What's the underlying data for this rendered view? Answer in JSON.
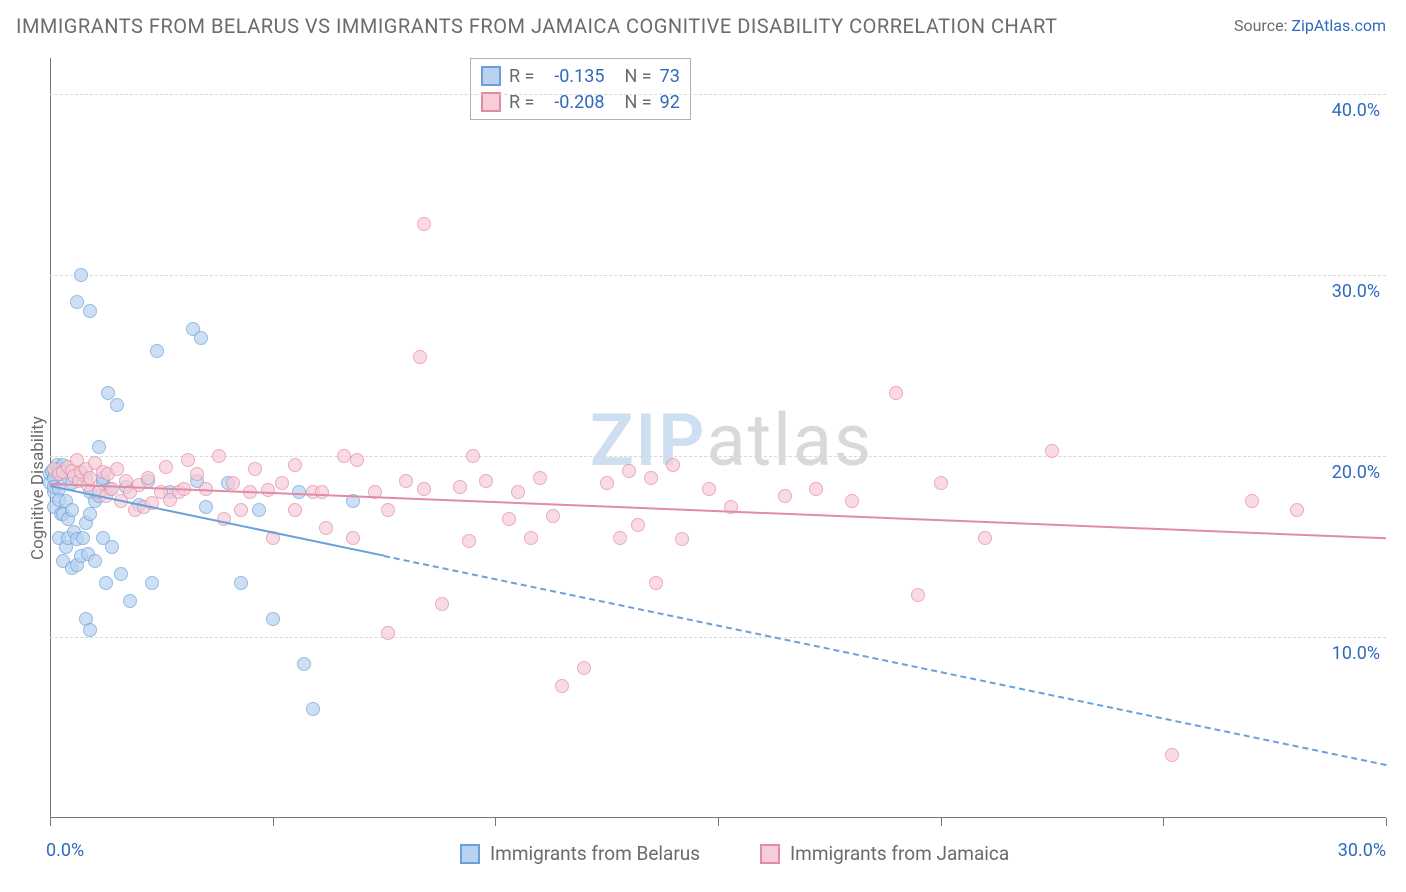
{
  "title": "IMMIGRANTS FROM BELARUS VS IMMIGRANTS FROM JAMAICA COGNITIVE DISABILITY CORRELATION CHART",
  "source_prefix": "Source: ",
  "source_link": "ZipAtlas.com",
  "ylabel": "Cognitive Disability",
  "watermark_a": "ZIP",
  "watermark_b": "atlas",
  "watermark_color_a": "#cddff0",
  "watermark_color_b": "#d9d9d9",
  "chart": {
    "type": "scatter",
    "background_color": "#ffffff",
    "grid_color": "#d8d8d8",
    "axis_color": "#777777",
    "tick_label_color": "#2f6bbd",
    "label_color": "#6b6b6b",
    "title_fontsize": 20,
    "label_fontsize": 17,
    "tick_fontsize": 18,
    "marker_radius": 7,
    "marker_border_width": 1.5,
    "trend_width": 2.2,
    "xlim": [
      0,
      30
    ],
    "ylim": [
      0,
      42
    ],
    "x_ticks": [
      0,
      5,
      10,
      15,
      20,
      25,
      30
    ],
    "x_tick_labels": {
      "0": "0.0%",
      "30": "30.0%"
    },
    "y_ticks": [
      10,
      20,
      30,
      40
    ],
    "y_tick_labels": {
      "10": "10.0%",
      "20": "20.0%",
      "30": "30.0%",
      "40": "40.0%"
    },
    "series": [
      {
        "name": "Immigrants from Belarus",
        "fill": "#b9d2ee",
        "stroke": "#6aa0dc",
        "fill_opacity": 0.7,
        "R": "-0.135",
        "N": "73",
        "trend": {
          "x1": 0,
          "y1": 18.4,
          "solid_until_x": 7.5,
          "x2": 30,
          "y2": 3.0,
          "dash": "5,5"
        },
        "points": [
          [
            0.0,
            19.0
          ],
          [
            0.0,
            18.5
          ],
          [
            0.05,
            19.2
          ],
          [
            0.1,
            18.0
          ],
          [
            0.1,
            18.8
          ],
          [
            0.1,
            18.3
          ],
          [
            0.1,
            17.2
          ],
          [
            0.15,
            19.5
          ],
          [
            0.2,
            18.2
          ],
          [
            0.2,
            19.3
          ],
          [
            0.2,
            15.5
          ],
          [
            0.2,
            17.6
          ],
          [
            0.25,
            16.8
          ],
          [
            0.25,
            19.0
          ],
          [
            0.3,
            16.8
          ],
          [
            0.3,
            19.5
          ],
          [
            0.3,
            14.2
          ],
          [
            0.35,
            17.5
          ],
          [
            0.35,
            15.0
          ],
          [
            0.4,
            15.5
          ],
          [
            0.4,
            18.8
          ],
          [
            0.4,
            16.5
          ],
          [
            0.5,
            13.8
          ],
          [
            0.5,
            17.0
          ],
          [
            0.5,
            18.5
          ],
          [
            0.55,
            15.8
          ],
          [
            0.6,
            15.4
          ],
          [
            0.6,
            14.0
          ],
          [
            0.6,
            28.5
          ],
          [
            0.7,
            30.0
          ],
          [
            0.7,
            14.5
          ],
          [
            0.7,
            19.0
          ],
          [
            0.75,
            15.5
          ],
          [
            0.8,
            16.3
          ],
          [
            0.8,
            18.8
          ],
          [
            0.8,
            11.0
          ],
          [
            0.85,
            14.6
          ],
          [
            0.9,
            18.0
          ],
          [
            0.9,
            16.8
          ],
          [
            0.9,
            28.0
          ],
          [
            0.9,
            10.4
          ],
          [
            1.0,
            14.2
          ],
          [
            1.0,
            17.5
          ],
          [
            1.1,
            20.5
          ],
          [
            1.1,
            17.8
          ],
          [
            1.2,
            18.5
          ],
          [
            1.2,
            15.5
          ],
          [
            1.2,
            18.8
          ],
          [
            1.25,
            13.0
          ],
          [
            1.3,
            23.5
          ],
          [
            1.35,
            18.2
          ],
          [
            1.4,
            15.0
          ],
          [
            1.5,
            22.8
          ],
          [
            1.6,
            13.5
          ],
          [
            1.7,
            18.3
          ],
          [
            1.8,
            12.0
          ],
          [
            2.0,
            17.3
          ],
          [
            2.2,
            18.6
          ],
          [
            2.3,
            13.0
          ],
          [
            2.4,
            25.8
          ],
          [
            2.7,
            18.0
          ],
          [
            3.2,
            27.0
          ],
          [
            3.3,
            18.6
          ],
          [
            3.4,
            26.5
          ],
          [
            3.5,
            17.2
          ],
          [
            4.0,
            18.5
          ],
          [
            4.3,
            13.0
          ],
          [
            4.7,
            17.0
          ],
          [
            5.0,
            11.0
          ],
          [
            5.6,
            18.0
          ],
          [
            5.7,
            8.5
          ],
          [
            5.9,
            6.0
          ],
          [
            6.8,
            17.5
          ]
        ]
      },
      {
        "name": "Immigrants from Jamaica",
        "fill": "#f6cdd9",
        "stroke": "#e38aa5",
        "fill_opacity": 0.7,
        "R": "-0.208",
        "N": "92",
        "trend": {
          "x1": 0,
          "y1": 18.5,
          "solid_until_x": 30,
          "x2": 30,
          "y2": 15.5,
          "dash": null
        },
        "points": [
          [
            0.1,
            19.3
          ],
          [
            0.2,
            19.0
          ],
          [
            0.3,
            19.1
          ],
          [
            0.4,
            19.4
          ],
          [
            0.5,
            19.2
          ],
          [
            0.55,
            18.9
          ],
          [
            0.6,
            19.8
          ],
          [
            0.65,
            18.6
          ],
          [
            0.7,
            19.1
          ],
          [
            0.8,
            19.3
          ],
          [
            0.85,
            18.4
          ],
          [
            0.9,
            18.8
          ],
          [
            1.0,
            19.6
          ],
          [
            1.1,
            18.0
          ],
          [
            1.2,
            19.1
          ],
          [
            1.25,
            17.8
          ],
          [
            1.3,
            19.0
          ],
          [
            1.4,
            18.2
          ],
          [
            1.5,
            19.3
          ],
          [
            1.6,
            17.5
          ],
          [
            1.7,
            18.6
          ],
          [
            1.8,
            18.0
          ],
          [
            1.9,
            17.0
          ],
          [
            2.0,
            18.4
          ],
          [
            2.1,
            17.2
          ],
          [
            2.2,
            18.8
          ],
          [
            2.3,
            17.4
          ],
          [
            2.5,
            18.0
          ],
          [
            2.6,
            19.4
          ],
          [
            2.7,
            17.6
          ],
          [
            2.9,
            18.0
          ],
          [
            3.0,
            18.2
          ],
          [
            3.1,
            19.8
          ],
          [
            3.3,
            19.0
          ],
          [
            3.5,
            18.2
          ],
          [
            3.8,
            20.0
          ],
          [
            3.9,
            16.5
          ],
          [
            4.1,
            18.5
          ],
          [
            4.3,
            17.0
          ],
          [
            4.5,
            18.0
          ],
          [
            4.6,
            19.3
          ],
          [
            4.9,
            18.1
          ],
          [
            5.0,
            15.5
          ],
          [
            5.2,
            18.5
          ],
          [
            5.5,
            19.5
          ],
          [
            5.5,
            17.0
          ],
          [
            5.9,
            18.0
          ],
          [
            6.1,
            18.0
          ],
          [
            6.2,
            16.0
          ],
          [
            6.6,
            20.0
          ],
          [
            6.8,
            15.5
          ],
          [
            6.9,
            19.8
          ],
          [
            7.3,
            18.0
          ],
          [
            7.6,
            17.0
          ],
          [
            7.6,
            10.2
          ],
          [
            8.0,
            18.6
          ],
          [
            8.3,
            25.5
          ],
          [
            8.4,
            18.2
          ],
          [
            8.4,
            32.8
          ],
          [
            8.8,
            11.8
          ],
          [
            9.2,
            18.3
          ],
          [
            9.4,
            15.3
          ],
          [
            9.5,
            20.0
          ],
          [
            9.8,
            18.6
          ],
          [
            10.3,
            16.5
          ],
          [
            10.5,
            18.0
          ],
          [
            10.8,
            15.5
          ],
          [
            11.0,
            18.8
          ],
          [
            11.3,
            16.7
          ],
          [
            11.5,
            7.3
          ],
          [
            12.0,
            8.3
          ],
          [
            12.5,
            18.5
          ],
          [
            12.8,
            15.5
          ],
          [
            13.0,
            19.2
          ],
          [
            13.2,
            16.2
          ],
          [
            13.5,
            18.8
          ],
          [
            13.6,
            13.0
          ],
          [
            14.0,
            19.5
          ],
          [
            14.2,
            15.4
          ],
          [
            14.8,
            18.2
          ],
          [
            15.3,
            17.2
          ],
          [
            16.5,
            17.8
          ],
          [
            17.2,
            18.2
          ],
          [
            18.0,
            17.5
          ],
          [
            19.0,
            23.5
          ],
          [
            19.5,
            12.3
          ],
          [
            20.0,
            18.5
          ],
          [
            21.0,
            15.5
          ],
          [
            22.5,
            20.3
          ],
          [
            25.2,
            3.5
          ],
          [
            27.0,
            17.5
          ],
          [
            28.0,
            17.0
          ]
        ]
      }
    ]
  },
  "legend_top": {
    "R_label": "R =",
    "N_label": "N ="
  },
  "bottom_legend": [
    {
      "label": "Immigrants from Belarus"
    },
    {
      "label": "Immigrants from Jamaica"
    }
  ]
}
